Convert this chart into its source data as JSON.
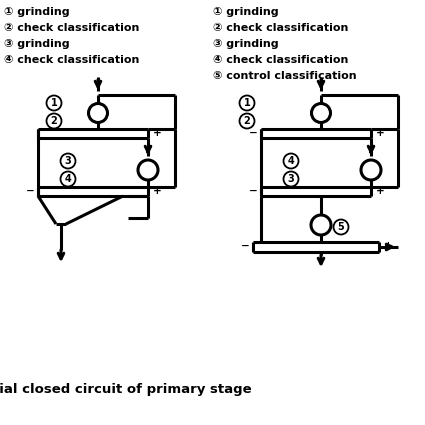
{
  "title": "Partial closed circuit of primary stage",
  "bg_color": "#ffffff",
  "line_color": "#000000",
  "text_color": "#000000",
  "left_legend": [
    "① grinding",
    "② check classification",
    "③ grinding",
    "④ check classification"
  ],
  "right_legend": [
    "① grinding",
    "② check classification",
    "③ grinding",
    "④ check classification",
    "⑤ control classification"
  ],
  "font_size_legend": 8.0,
  "font_size_title": 9.5,
  "font_size_label": 7.0,
  "font_size_plusminus": 7.5
}
